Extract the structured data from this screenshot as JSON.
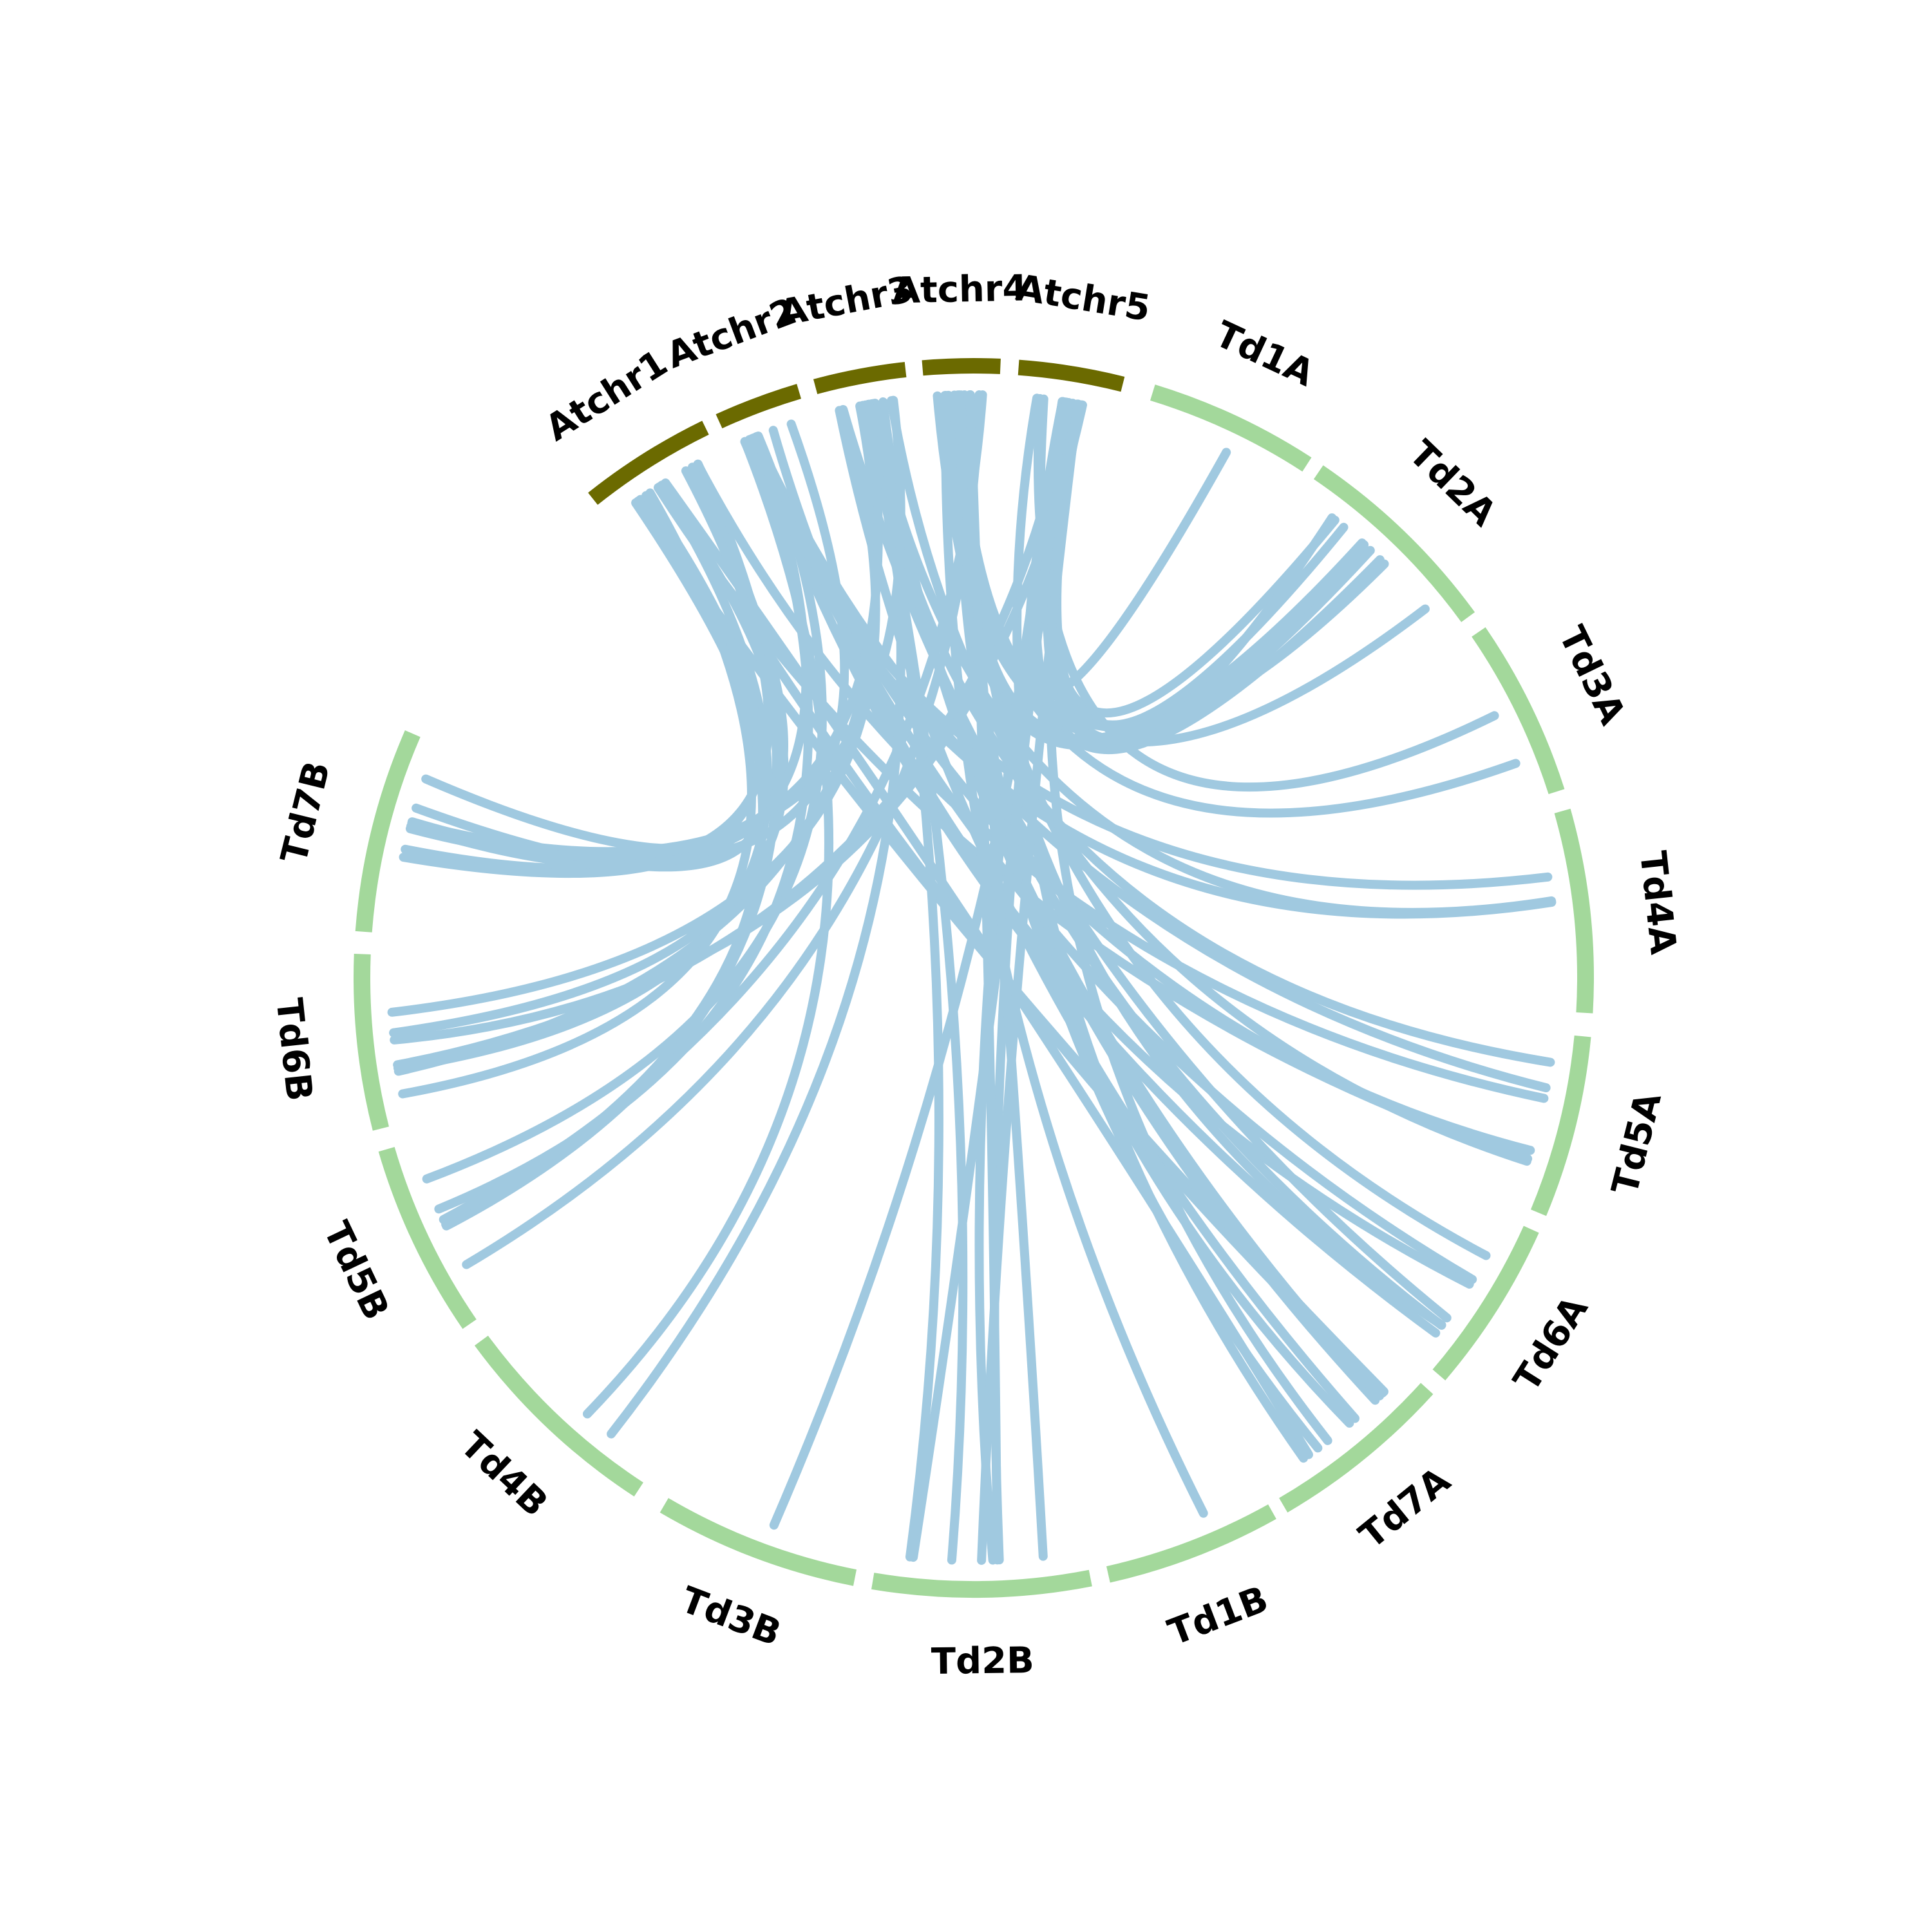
{
  "chart_data": {
    "type": "circos",
    "colors": {
      "arabidopsis": "#6b6a00",
      "durum": "#a3d89b",
      "link": "#a0c9e0",
      "background": "#ffffff"
    },
    "chromosomes": [
      {
        "name": "Atchr1",
        "genome": "arabidopsis"
      },
      {
        "name": "Atchr2",
        "genome": "arabidopsis"
      },
      {
        "name": "Atchr3",
        "genome": "arabidopsis"
      },
      {
        "name": "Atchr4",
        "genome": "arabidopsis"
      },
      {
        "name": "Atchr5",
        "genome": "arabidopsis"
      },
      {
        "name": "Td1A",
        "genome": "durum"
      },
      {
        "name": "Td2A",
        "genome": "durum"
      },
      {
        "name": "Td3A",
        "genome": "durum"
      },
      {
        "name": "Td4A",
        "genome": "durum"
      },
      {
        "name": "Td5A",
        "genome": "durum"
      },
      {
        "name": "Td6A",
        "genome": "durum"
      },
      {
        "name": "Td7A",
        "genome": "durum"
      },
      {
        "name": "Td1B",
        "genome": "durum"
      },
      {
        "name": "Td2B",
        "genome": "durum"
      },
      {
        "name": "Td3B",
        "genome": "durum"
      },
      {
        "name": "Td4B",
        "genome": "durum"
      },
      {
        "name": "Td5B",
        "genome": "durum"
      },
      {
        "name": "Td6B",
        "genome": "durum"
      },
      {
        "name": "Td7B",
        "genome": "durum"
      }
    ],
    "links": [
      {
        "from": "Atchr5",
        "to": "Td1A",
        "count": 1
      },
      {
        "from": "Atchr5",
        "to": "Td2A",
        "count": 5
      },
      {
        "from": "Atchr5",
        "to": "Td3A",
        "count": 1
      },
      {
        "from": "Atchr4",
        "to": "Td2A",
        "count": 4
      },
      {
        "from": "Atchr4",
        "to": "Td3A",
        "count": 1
      },
      {
        "from": "Atchr3",
        "to": "Td4A",
        "count": 1
      },
      {
        "from": "Atchr2",
        "to": "Td4A",
        "count": 2
      },
      {
        "from": "Atchr1",
        "to": "Td5A",
        "count": 2
      },
      {
        "from": "Atchr2",
        "to": "Td5A",
        "count": 2
      },
      {
        "from": "Atchr3",
        "to": "Td5A",
        "count": 2
      },
      {
        "from": "Atchr2",
        "to": "Td6A",
        "count": 3
      },
      {
        "from": "Atchr3",
        "to": "Td6A",
        "count": 2
      },
      {
        "from": "Atchr4",
        "to": "Td6A",
        "count": 2
      },
      {
        "from": "Atchr1",
        "to": "Td7A",
        "count": 3
      },
      {
        "from": "Atchr3",
        "to": "Td7A",
        "count": 3
      },
      {
        "from": "Atchr4",
        "to": "Td7A",
        "count": 2
      },
      {
        "from": "Atchr5",
        "to": "Td7A",
        "count": 2
      },
      {
        "from": "Atchr4",
        "to": "Td1B",
        "count": 1
      },
      {
        "from": "Atchr5",
        "to": "Td2B",
        "count": 4
      },
      {
        "from": "Atchr3",
        "to": "Td2B",
        "count": 2
      },
      {
        "from": "Atchr4",
        "to": "Td2B",
        "count": 2
      },
      {
        "from": "Atchr5",
        "to": "Td3B",
        "count": 1
      },
      {
        "from": "Atchr2",
        "to": "Td4B",
        "count": 1
      },
      {
        "from": "Atchr3",
        "to": "Td4B",
        "count": 1
      },
      {
        "from": "Atchr1",
        "to": "Td5B",
        "count": 2
      },
      {
        "from": "Atchr2",
        "to": "Td5B",
        "count": 2
      },
      {
        "from": "Atchr4",
        "to": "Td5B",
        "count": 2
      },
      {
        "from": "Atchr1",
        "to": "Td6B",
        "count": 3
      },
      {
        "from": "Atchr3",
        "to": "Td6B",
        "count": 2
      },
      {
        "from": "Atchr5",
        "to": "Td6B",
        "count": 2
      },
      {
        "from": "Atchr1",
        "to": "Td7B",
        "count": 4
      },
      {
        "from": "Atchr2",
        "to": "Td7B",
        "count": 2
      },
      {
        "from": "Atchr3",
        "to": "Td7B",
        "count": 2
      }
    ]
  }
}
